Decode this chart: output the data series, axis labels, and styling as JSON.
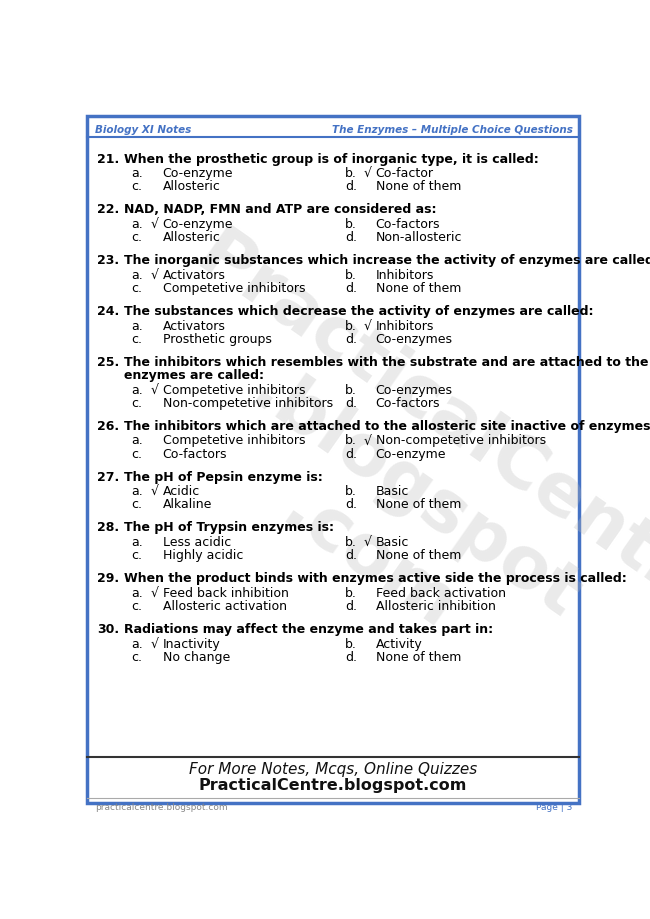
{
  "header_left": "Biology XI Notes",
  "header_right": "The Enzymes – Multiple Choice Questions",
  "border_color": "#4472C4",
  "header_text_color": "#4472C4",
  "footer_left": "practicalcentre.blogspot.com",
  "footer_right": "Page | 3",
  "footer_note1": "For More Notes, Mcqs, Online Quizzes",
  "footer_note2": "PracticalCentre.blogspot.com",
  "questions": [
    {
      "num": "21.",
      "text": "When the prosthetic group is of inorganic type, it is called:",
      "two_line": false,
      "options": [
        {
          "label": "a.",
          "check": "",
          "text": "Co-enzyme"
        },
        {
          "label": "b.",
          "check": "√",
          "text": "Co-factor"
        },
        {
          "label": "c.",
          "check": "",
          "text": "Allosteric"
        },
        {
          "label": "d.",
          "check": "",
          "text": "None of them"
        }
      ]
    },
    {
      "num": "22.",
      "text": "NAD, NADP, FMN and ATP are considered as:",
      "two_line": false,
      "options": [
        {
          "label": "a.",
          "check": "√",
          "text": "Co-enzyme"
        },
        {
          "label": "b.",
          "check": "",
          "text": "Co-factors"
        },
        {
          "label": "c.",
          "check": "",
          "text": "Allosteric"
        },
        {
          "label": "d.",
          "check": "",
          "text": "Non-allosteric"
        }
      ]
    },
    {
      "num": "23.",
      "text": "The inorganic substances which increase the activity of enzymes are called:",
      "two_line": false,
      "options": [
        {
          "label": "a.",
          "check": "√",
          "text": "Activators"
        },
        {
          "label": "b.",
          "check": "",
          "text": "Inhibitors"
        },
        {
          "label": "c.",
          "check": "",
          "text": "Competetive inhibitors"
        },
        {
          "label": "d.",
          "check": "",
          "text": "None of them"
        }
      ]
    },
    {
      "num": "24.",
      "text": "The substances which decrease the activity of enzymes are called:",
      "two_line": false,
      "options": [
        {
          "label": "a.",
          "check": "",
          "text": "Activators"
        },
        {
          "label": "b.",
          "check": "√",
          "text": "Inhibitors"
        },
        {
          "label": "c.",
          "check": "",
          "text": "Prosthetic groups"
        },
        {
          "label": "d.",
          "check": "",
          "text": "Co-enzymes"
        }
      ]
    },
    {
      "num": "25.",
      "text": "The inhibitors which resembles with the substrate and are attached to the active site of",
      "text2": "enzymes are called:",
      "two_line": true,
      "options": [
        {
          "label": "a.",
          "check": "√",
          "text": "Competetive inhibitors"
        },
        {
          "label": "b.",
          "check": "",
          "text": "Co-enzymes"
        },
        {
          "label": "c.",
          "check": "",
          "text": "Non-competetive inhibitors"
        },
        {
          "label": "d.",
          "check": "",
          "text": "Co-factors"
        }
      ]
    },
    {
      "num": "26.",
      "text": "The inhibitors which are attached to the allosteric site inactive of enzymes are called:",
      "two_line": false,
      "options": [
        {
          "label": "a.",
          "check": "",
          "text": "Competetive inhibitors"
        },
        {
          "label": "b.",
          "check": "√",
          "text": "Non-competetive inhibitors"
        },
        {
          "label": "c.",
          "check": "",
          "text": "Co-factors"
        },
        {
          "label": "d.",
          "check": "",
          "text": "Co-enzyme"
        }
      ]
    },
    {
      "num": "27.",
      "text": "The pH of Pepsin enzyme is:",
      "two_line": false,
      "options": [
        {
          "label": "a.",
          "check": "√",
          "text": "Acidic"
        },
        {
          "label": "b.",
          "check": "",
          "text": "Basic"
        },
        {
          "label": "c.",
          "check": "",
          "text": "Alkaline"
        },
        {
          "label": "d.",
          "check": "",
          "text": "None of them"
        }
      ]
    },
    {
      "num": "28.",
      "text": "The pH of Trypsin enzymes is:",
      "two_line": false,
      "options": [
        {
          "label": "a.",
          "check": "",
          "text": "Less acidic"
        },
        {
          "label": "b.",
          "check": "√",
          "text": "Basic"
        },
        {
          "label": "c.",
          "check": "",
          "text": "Highly acidic"
        },
        {
          "label": "d.",
          "check": "",
          "text": "None of them"
        }
      ]
    },
    {
      "num": "29.",
      "text": "When the product binds with enzymes active side the process is called:",
      "two_line": false,
      "options": [
        {
          "label": "a.",
          "check": "√",
          "text": "Feed back inhibition"
        },
        {
          "label": "b.",
          "check": "",
          "text": "Feed back activation"
        },
        {
          "label": "c.",
          "check": "",
          "text": "Allosteric activation"
        },
        {
          "label": "d.",
          "check": "",
          "text": "Allosteric inhibition"
        }
      ]
    },
    {
      "num": "30.",
      "text": "Radiations may affect the enzyme and takes part in:",
      "two_line": false,
      "options": [
        {
          "label": "a.",
          "check": "√",
          "text": "Inactivity"
        },
        {
          "label": "b.",
          "check": "",
          "text": "Activity"
        },
        {
          "label": "c.",
          "check": "",
          "text": "No change"
        },
        {
          "label": "d.",
          "check": "",
          "text": "None of them"
        }
      ]
    }
  ]
}
